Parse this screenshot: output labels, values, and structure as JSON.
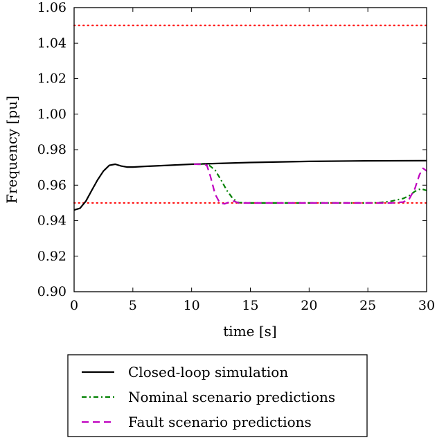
{
  "chart_data": {
    "type": "line",
    "title": "",
    "xlabel": "time [s]",
    "ylabel": "Frequency [pu]",
    "xlim": [
      0,
      30
    ],
    "ylim": [
      0.9,
      1.06
    ],
    "x_ticks": [
      "0",
      "5",
      "10",
      "15",
      "20",
      "25",
      "30"
    ],
    "y_ticks": [
      "0.90",
      "0.92",
      "0.94",
      "0.96",
      "0.98",
      "1.00",
      "1.02",
      "1.04",
      "1.06"
    ],
    "grid": false,
    "legend_position": "below plot",
    "reference_lines": [
      {
        "y": 1.05,
        "color": "#ff0000",
        "style": "dotted"
      },
      {
        "y": 0.95,
        "color": "#ff0000",
        "style": "dotted"
      }
    ],
    "series": [
      {
        "name": "Closed-loop simulation",
        "color": "#000000",
        "style": "solid",
        "x": [
          0,
          0.5,
          1,
          1.5,
          2,
          2.5,
          3,
          3.5,
          4,
          4.5,
          5,
          6,
          8,
          10,
          12,
          15,
          20,
          25,
          30
        ],
        "y": [
          0.946,
          0.947,
          0.951,
          0.957,
          0.963,
          0.968,
          0.9712,
          0.9718,
          0.9708,
          0.9702,
          0.9702,
          0.9706,
          0.9712,
          0.9718,
          0.9722,
          0.9728,
          0.9734,
          0.9737,
          0.9738
        ]
      },
      {
        "name": "Nominal scenario predictions",
        "color": "#008000",
        "style": "dashdot",
        "x": [
          10.5,
          11,
          11.5,
          12,
          12.5,
          13,
          13.5,
          14,
          15,
          20,
          25,
          26,
          27,
          28,
          28.5,
          29,
          29.5,
          30
        ],
        "y": [
          0.9718,
          0.9718,
          0.9712,
          0.9685,
          0.963,
          0.957,
          0.9525,
          0.9502,
          0.95,
          0.95,
          0.95,
          0.9502,
          0.951,
          0.9525,
          0.954,
          0.9565,
          0.958,
          0.957
        ]
      },
      {
        "name": "Fault scenario predictions",
        "color": "#bf00bf",
        "style": "dashed",
        "x": [
          10.2,
          11,
          11.3,
          11.6,
          12,
          12.4,
          12.8,
          13.2,
          13.6,
          14,
          15,
          20,
          25,
          27,
          28,
          28.5,
          29,
          29.4,
          29.7,
          30
        ],
        "y": [
          0.9718,
          0.9718,
          0.9712,
          0.965,
          0.955,
          0.95,
          0.9495,
          0.9505,
          0.951,
          0.95,
          0.95,
          0.95,
          0.95,
          0.95,
          0.9505,
          0.952,
          0.958,
          0.966,
          0.9695,
          0.968
        ]
      }
    ]
  }
}
